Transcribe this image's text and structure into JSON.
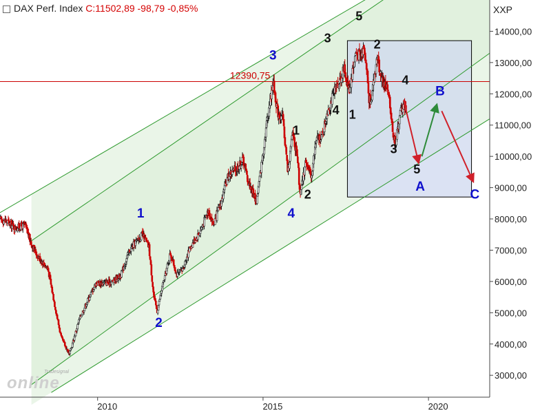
{
  "header": {
    "instrument": "DAX Perf. Index",
    "quote": "C:11502,89 -98,79 -0,85%"
  },
  "logo": {
    "brand": "Tradesignal",
    "product": "online"
  },
  "colors": {
    "candle_up": "#1a1a1a",
    "candle_down": "#cc0000",
    "channel_line": "#2e9a2e",
    "channel_fill": "#d9ecd6",
    "resistance_line": "#cc0000",
    "wave_blue": "#1010cc",
    "wave_black": "#111111",
    "arrow_down": "#d0202a",
    "arrow_up": "#2e8b3a",
    "target_box_fill": "#cfd8ef",
    "target_box_edge": "#000000"
  },
  "chart_data": {
    "type": "candlestick",
    "title": "DAX Perf. Index",
    "y_axis_label": "XXP",
    "y_axis_side": "right",
    "ylim": [
      2300,
      15000
    ],
    "xlim": [
      2007.05,
      2021.85
    ],
    "y_ticks": [
      "3000,00",
      "4000,00",
      "5000,00",
      "6000,00",
      "7000,00",
      "8000,00",
      "9000,00",
      "10000,00",
      "11000,00",
      "12000,00",
      "13000,00",
      "14000,00"
    ],
    "y_tick_values": [
      3000,
      4000,
      5000,
      6000,
      7000,
      8000,
      9000,
      10000,
      11000,
      12000,
      13000,
      14000
    ],
    "x_ticks": [
      "2010",
      "2015",
      "2020"
    ],
    "x_tick_values": [
      2010,
      2015,
      2020
    ],
    "grid": false,
    "price_path": [
      [
        2007.05,
        8000
      ],
      [
        2007.3,
        7900
      ],
      [
        2007.5,
        7700
      ],
      [
        2007.8,
        7800
      ],
      [
        2008.0,
        7200
      ],
      [
        2008.2,
        6800
      ],
      [
        2008.5,
        6400
      ],
      [
        2008.75,
        5000
      ],
      [
        2008.9,
        4200
      ],
      [
        2009.15,
        3670
      ],
      [
        2009.45,
        4800
      ],
      [
        2009.7,
        5400
      ],
      [
        2009.95,
        5950
      ],
      [
        2010.2,
        5950
      ],
      [
        2010.45,
        6000
      ],
      [
        2010.7,
        6200
      ],
      [
        2010.95,
        6950
      ],
      [
        2011.1,
        7200
      ],
      [
        2011.35,
        7500
      ],
      [
        2011.55,
        7100
      ],
      [
        2011.7,
        5500
      ],
      [
        2011.8,
        5050
      ],
      [
        2011.95,
        5800
      ],
      [
        2012.2,
        6900
      ],
      [
        2012.4,
        6200
      ],
      [
        2012.55,
        6350
      ],
      [
        2012.8,
        7100
      ],
      [
        2013.1,
        7600
      ],
      [
        2013.35,
        8300
      ],
      [
        2013.5,
        7800
      ],
      [
        2013.75,
        8600
      ],
      [
        2013.95,
        9400
      ],
      [
        2014.2,
        9600
      ],
      [
        2014.4,
        9900
      ],
      [
        2014.55,
        9200
      ],
      [
        2014.8,
        8570
      ],
      [
        2014.95,
        9700
      ],
      [
        2015.1,
        11000
      ],
      [
        2015.3,
        12390
      ],
      [
        2015.45,
        11400
      ],
      [
        2015.6,
        11200
      ],
      [
        2015.75,
        9500
      ],
      [
        2015.9,
        10800
      ],
      [
        2016.05,
        9800
      ],
      [
        2016.12,
        8700
      ],
      [
        2016.3,
        9900
      ],
      [
        2016.45,
        9300
      ],
      [
        2016.6,
        10500
      ],
      [
        2016.8,
        10700
      ],
      [
        2016.95,
        11480
      ],
      [
        2017.1,
        11900
      ],
      [
        2017.3,
        12400
      ],
      [
        2017.45,
        12800
      ],
      [
        2017.6,
        12100
      ],
      [
        2017.8,
        13300
      ],
      [
        2017.95,
        13200
      ],
      [
        2018.05,
        13590
      ],
      [
        2018.15,
        12600
      ],
      [
        2018.2,
        11800
      ],
      [
        2018.3,
        12000
      ],
      [
        2018.45,
        13200
      ],
      [
        2018.6,
        12400
      ],
      [
        2018.75,
        12200
      ],
      [
        2018.85,
        11500
      ],
      [
        2018.95,
        10600
      ],
      [
        2019.0,
        10400
      ],
      [
        2019.15,
        11400
      ],
      [
        2019.25,
        11700
      ],
      [
        2019.32,
        11500
      ]
    ],
    "hline": {
      "value": 12390.75,
      "label": "12390,75"
    },
    "channels": [
      {
        "x1": 2007.05,
        "y1": 8200,
        "x2": 2018.4,
        "y2": 15200
      },
      {
        "x1": 2008.0,
        "y1": 7300,
        "x2": 2018.9,
        "y2": 15200
      },
      {
        "x1": 2008.0,
        "y1": 2700,
        "x2": 2021.85,
        "y2": 13300
      },
      {
        "x1": 2008.6,
        "y1": 2450,
        "x2": 2021.85,
        "y2": 11200
      }
    ],
    "target_box": {
      "x1": 2017.55,
      "x2": 2021.3,
      "y1": 8700,
      "y2": 13700
    },
    "arrows": [
      {
        "x1": 2019.25,
        "y1": 11800,
        "x2": 2019.7,
        "y2": 9800,
        "color": "down"
      },
      {
        "x1": 2019.8,
        "y1": 10000,
        "x2": 2020.25,
        "y2": 11650,
        "color": "up"
      },
      {
        "x1": 2020.4,
        "y1": 11450,
        "x2": 2021.35,
        "y2": 9200,
        "color": "down"
      }
    ],
    "wave_labels": [
      {
        "text": "1",
        "x": 2011.3,
        "y": 8050,
        "color": "blue"
      },
      {
        "text": "2",
        "x": 2011.85,
        "y": 4550,
        "color": "blue"
      },
      {
        "text": "3",
        "x": 2015.3,
        "y": 13100,
        "color": "blue"
      },
      {
        "text": "4",
        "x": 2015.85,
        "y": 8050,
        "color": "blue"
      },
      {
        "text": "5",
        "x": 2017.95,
        "y": 15000,
        "color": "blue"
      },
      {
        "text": "5",
        "x": 2017.9,
        "y": 14350,
        "color": "black"
      },
      {
        "text": "3",
        "x": 2016.95,
        "y": 13650,
        "color": "black"
      },
      {
        "text": "4",
        "x": 2017.2,
        "y": 11350,
        "color": "black"
      },
      {
        "text": "1",
        "x": 2016.0,
        "y": 10700,
        "color": "black"
      },
      {
        "text": "2",
        "x": 2016.35,
        "y": 8650,
        "color": "black"
      },
      {
        "text": "1",
        "x": 2017.7,
        "y": 11200,
        "color": "black"
      },
      {
        "text": "2",
        "x": 2018.45,
        "y": 13450,
        "color": "black"
      },
      {
        "text": "3",
        "x": 2018.95,
        "y": 10100,
        "color": "black"
      },
      {
        "text": "4",
        "x": 2019.3,
        "y": 12300,
        "color": "black"
      },
      {
        "text": "5",
        "x": 2019.65,
        "y": 9450,
        "color": "black"
      },
      {
        "text": "A",
        "x": 2019.75,
        "y": 8900,
        "color": "blue"
      },
      {
        "text": "B",
        "x": 2020.35,
        "y": 11950,
        "color": "blue"
      },
      {
        "text": "C",
        "x": 2021.4,
        "y": 8650,
        "color": "blue"
      }
    ]
  }
}
